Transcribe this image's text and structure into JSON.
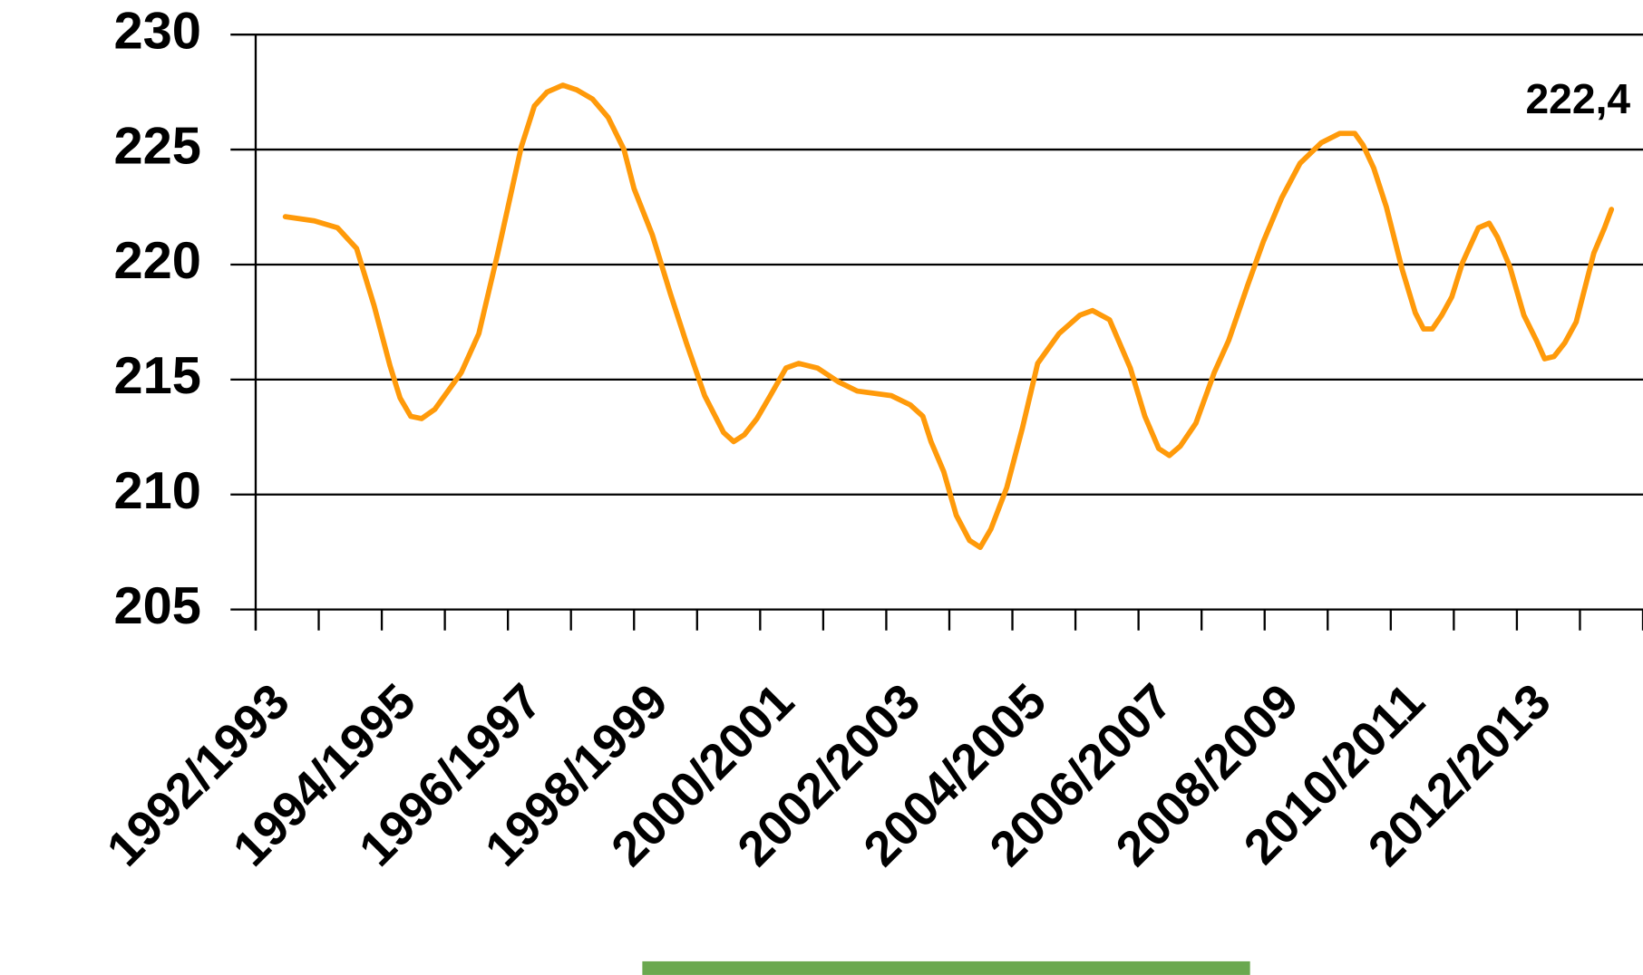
{
  "chart_data": {
    "type": "line",
    "categories": [
      "1992/1993",
      null,
      "1994/1995",
      null,
      "1996/1997",
      null,
      "1998/1999",
      null,
      "2000/2001",
      null,
      "2002/2003",
      null,
      "2004/2005",
      null,
      "2006/2007",
      null,
      "2008/2009",
      null,
      "2010/2011",
      null,
      "2012/2013",
      null
    ],
    "xlim": [
      0,
      22
    ],
    "ylim": [
      205,
      230
    ],
    "yticks": [
      205,
      210,
      215,
      220,
      225,
      230
    ],
    "grid": true,
    "annotation": "222,4",
    "series": [
      {
        "color": "#ff9a0a",
        "x": [
          0.47,
          0.93,
          1.3,
          1.6,
          1.88,
          2.13,
          2.29,
          2.46,
          2.63,
          2.84,
          3.26,
          3.54,
          3.84,
          4.21,
          4.42,
          4.62,
          4.87,
          5.09,
          5.34,
          5.59,
          5.84,
          6.0,
          6.29,
          6.58,
          6.83,
          7.12,
          7.42,
          7.58,
          7.75,
          7.95,
          8.16,
          8.41,
          8.61,
          8.91,
          9.24,
          9.54,
          10.08,
          10.38,
          10.58,
          10.71,
          10.91,
          11.11,
          11.32,
          11.49,
          11.66,
          11.91,
          12.16,
          12.4,
          12.74,
          13.07,
          13.27,
          13.54,
          13.87,
          14.1,
          14.32,
          14.49,
          14.66,
          14.91,
          15.2,
          15.43,
          15.73,
          15.98,
          16.27,
          16.56,
          16.9,
          17.19,
          17.43,
          17.56,
          17.73,
          17.93,
          18.18,
          18.39,
          18.52,
          18.66,
          18.81,
          18.97,
          19.14,
          19.39,
          19.56,
          19.69,
          19.89,
          20.11,
          20.31,
          20.44,
          20.59,
          20.76,
          20.94,
          21.22,
          21.39,
          21.5
        ],
        "values": [
          222.08,
          221.9,
          221.6,
          220.7,
          218.2,
          215.6,
          214.2,
          213.4,
          213.3,
          213.7,
          215.3,
          217.0,
          220.5,
          225.1,
          226.9,
          227.5,
          227.8,
          227.6,
          227.2,
          226.4,
          225.0,
          223.3,
          221.3,
          218.7,
          216.6,
          214.3,
          212.7,
          212.3,
          212.6,
          213.3,
          214.3,
          215.5,
          215.7,
          215.5,
          214.9,
          214.5,
          214.3,
          213.9,
          213.4,
          212.3,
          211.0,
          209.1,
          208.0,
          207.7,
          208.5,
          210.3,
          212.9,
          215.7,
          217.0,
          217.8,
          218.0,
          217.6,
          215.5,
          213.4,
          212.0,
          211.7,
          212.1,
          213.1,
          215.3,
          216.7,
          219.1,
          221.0,
          222.9,
          224.4,
          225.3,
          225.7,
          225.7,
          225.2,
          224.2,
          222.5,
          219.8,
          217.9,
          217.2,
          217.2,
          217.8,
          218.6,
          220.1,
          221.6,
          221.8,
          221.2,
          219.9,
          217.8,
          216.7,
          215.9,
          216.0,
          216.6,
          217.5,
          220.5,
          221.6,
          222.4
        ]
      }
    ]
  }
}
